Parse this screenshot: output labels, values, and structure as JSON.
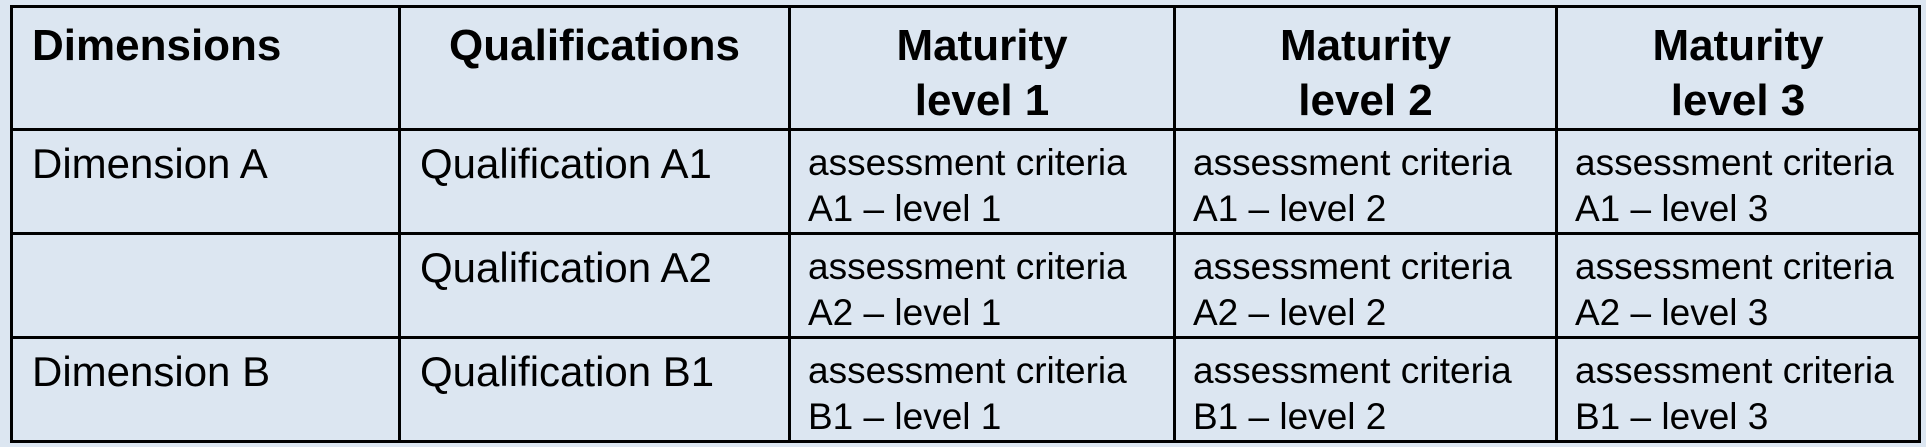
{
  "page": {
    "background_color": "#dce6f1",
    "border_color": "#000000",
    "text_color": "#000000"
  },
  "table": {
    "headers": {
      "dimensions": "Dimensions",
      "qualifications": "Qualifications",
      "maturity1": "Maturity\nlevel 1",
      "maturity2": "Maturity\nlevel 2",
      "maturity3": "Maturity\nlevel 3"
    },
    "rows": [
      {
        "dimension": "Dimension A",
        "qualification": "Qualification A1",
        "criteria1": "assessment criteria\nA1 – level 1",
        "criteria2": "assessment criteria\nA1 – level 2",
        "criteria3": "assessment criteria\nA1 – level 3"
      },
      {
        "dimension": "",
        "qualification": "Qualification A2",
        "criteria1": "assessment criteria\nA2 – level 1",
        "criteria2": "assessment criteria\nA2 – level 2",
        "criteria3": "assessment criteria\nA2 – level 3"
      },
      {
        "dimension": "Dimension B",
        "qualification": "Qualification B1",
        "criteria1": "assessment criteria\nB1 – level 1",
        "criteria2": "assessment criteria\nB1 – level 2",
        "criteria3": "assessment criteria\nB1 – level 3"
      }
    ]
  }
}
